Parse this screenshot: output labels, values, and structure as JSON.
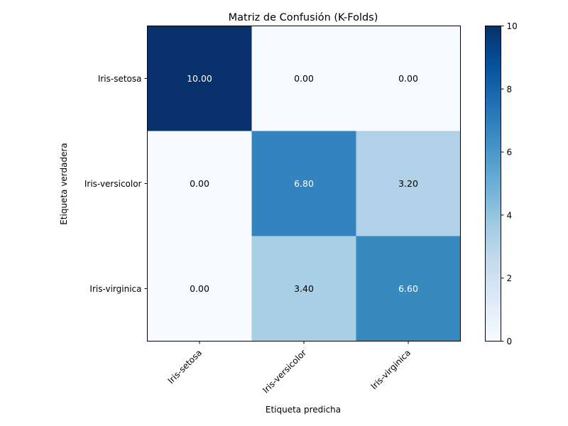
{
  "chart_data": {
    "type": "heatmap",
    "title": "Matriz de Confusión (K-Folds)",
    "xlabel": "Etiqueta predicha",
    "ylabel": "Etiqueta verdadera",
    "x_categories": [
      "Iris-setosa",
      "Iris-versicolor",
      "Iris-virginica"
    ],
    "y_categories": [
      "Iris-setosa",
      "Iris-versicolor",
      "Iris-virginica"
    ],
    "values": [
      [
        10.0,
        0.0,
        0.0
      ],
      [
        0.0,
        6.8,
        3.2
      ],
      [
        0.0,
        3.4,
        6.6
      ]
    ],
    "value_labels": [
      [
        "10.00",
        "0.00",
        "0.00"
      ],
      [
        "0.00",
        "6.80",
        "3.20"
      ],
      [
        "0.00",
        "3.40",
        "6.60"
      ]
    ],
    "colorscale": "Blues",
    "vmin": 0,
    "vmax": 10,
    "colorbar_ticks": [
      0,
      2,
      4,
      6,
      8,
      10
    ],
    "colorbar_tick_labels": [
      "0",
      "2",
      "4",
      "6",
      "8",
      "10"
    ],
    "grid": false
  }
}
